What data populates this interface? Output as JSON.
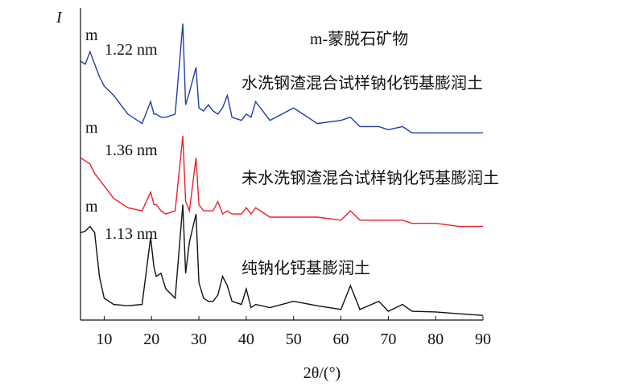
{
  "chart_data": {
    "type": "line",
    "xlabel": "2θ/(°)",
    "ylabel": "I",
    "annotations": [
      "m-蒙脱石矿物",
      "m",
      "1.22 nm",
      "m",
      "1.36 nm",
      "m",
      "1.13 nm"
    ],
    "x": [
      5,
      6,
      7,
      8,
      9,
      10,
      12,
      15,
      18,
      19.8,
      20.5,
      21,
      22,
      23,
      25,
      26.6,
      27.2,
      28,
      29.4,
      30,
      31,
      32,
      33,
      34,
      35,
      36,
      37,
      39,
      40,
      41,
      42,
      45,
      50,
      55,
      60,
      62,
      64,
      68,
      70,
      73,
      75,
      80,
      85,
      90
    ],
    "series": [
      {
        "name": "水洗钢渣混合试样钠化钙基膨润土",
        "color": "#1f3fa8",
        "values": [
          83,
          82,
          86,
          82,
          78,
          75,
          72,
          66,
          63,
          70,
          66,
          66,
          65,
          65,
          66,
          95,
          69,
          73,
          81,
          68,
          67,
          69,
          67,
          66,
          68,
          72,
          65,
          64,
          66,
          65,
          70,
          64,
          68,
          63,
          64,
          65,
          62,
          62,
          61,
          62,
          60,
          60,
          60,
          60
        ]
      },
      {
        "name": "未水洗钢渣混合试样钠化钙基膨润土",
        "color": "#e8202a",
        "values": [
          52,
          51,
          50,
          47,
          45,
          43,
          39,
          36,
          35,
          41,
          37,
          37,
          35,
          34,
          35,
          59,
          38,
          35,
          52,
          37,
          35,
          35,
          35,
          38,
          34,
          35,
          34,
          34,
          36,
          34,
          36,
          33,
          33,
          33,
          32,
          35,
          32,
          32,
          32,
          32,
          31,
          31,
          30,
          30
        ]
      },
      {
        "name": "纯钠化钙基膨润土",
        "color": "#111111",
        "values": [
          28,
          28.5,
          30,
          28,
          14,
          7,
          5,
          4.6,
          5,
          26.5,
          17,
          14,
          15,
          10,
          7,
          37,
          15,
          25,
          34,
          12,
          7,
          6,
          6,
          8,
          14,
          11,
          6,
          5,
          10,
          4,
          5,
          4,
          6,
          4.6,
          3.4,
          11,
          3.4,
          6,
          2.8,
          5,
          2.8,
          2.6,
          2,
          1.5
        ]
      }
    ],
    "xlim": [
      5,
      90
    ],
    "xticks": [
      10,
      20,
      30,
      40,
      50,
      60,
      70,
      80,
      90
    ],
    "ylim": [
      0,
      100
    ]
  }
}
